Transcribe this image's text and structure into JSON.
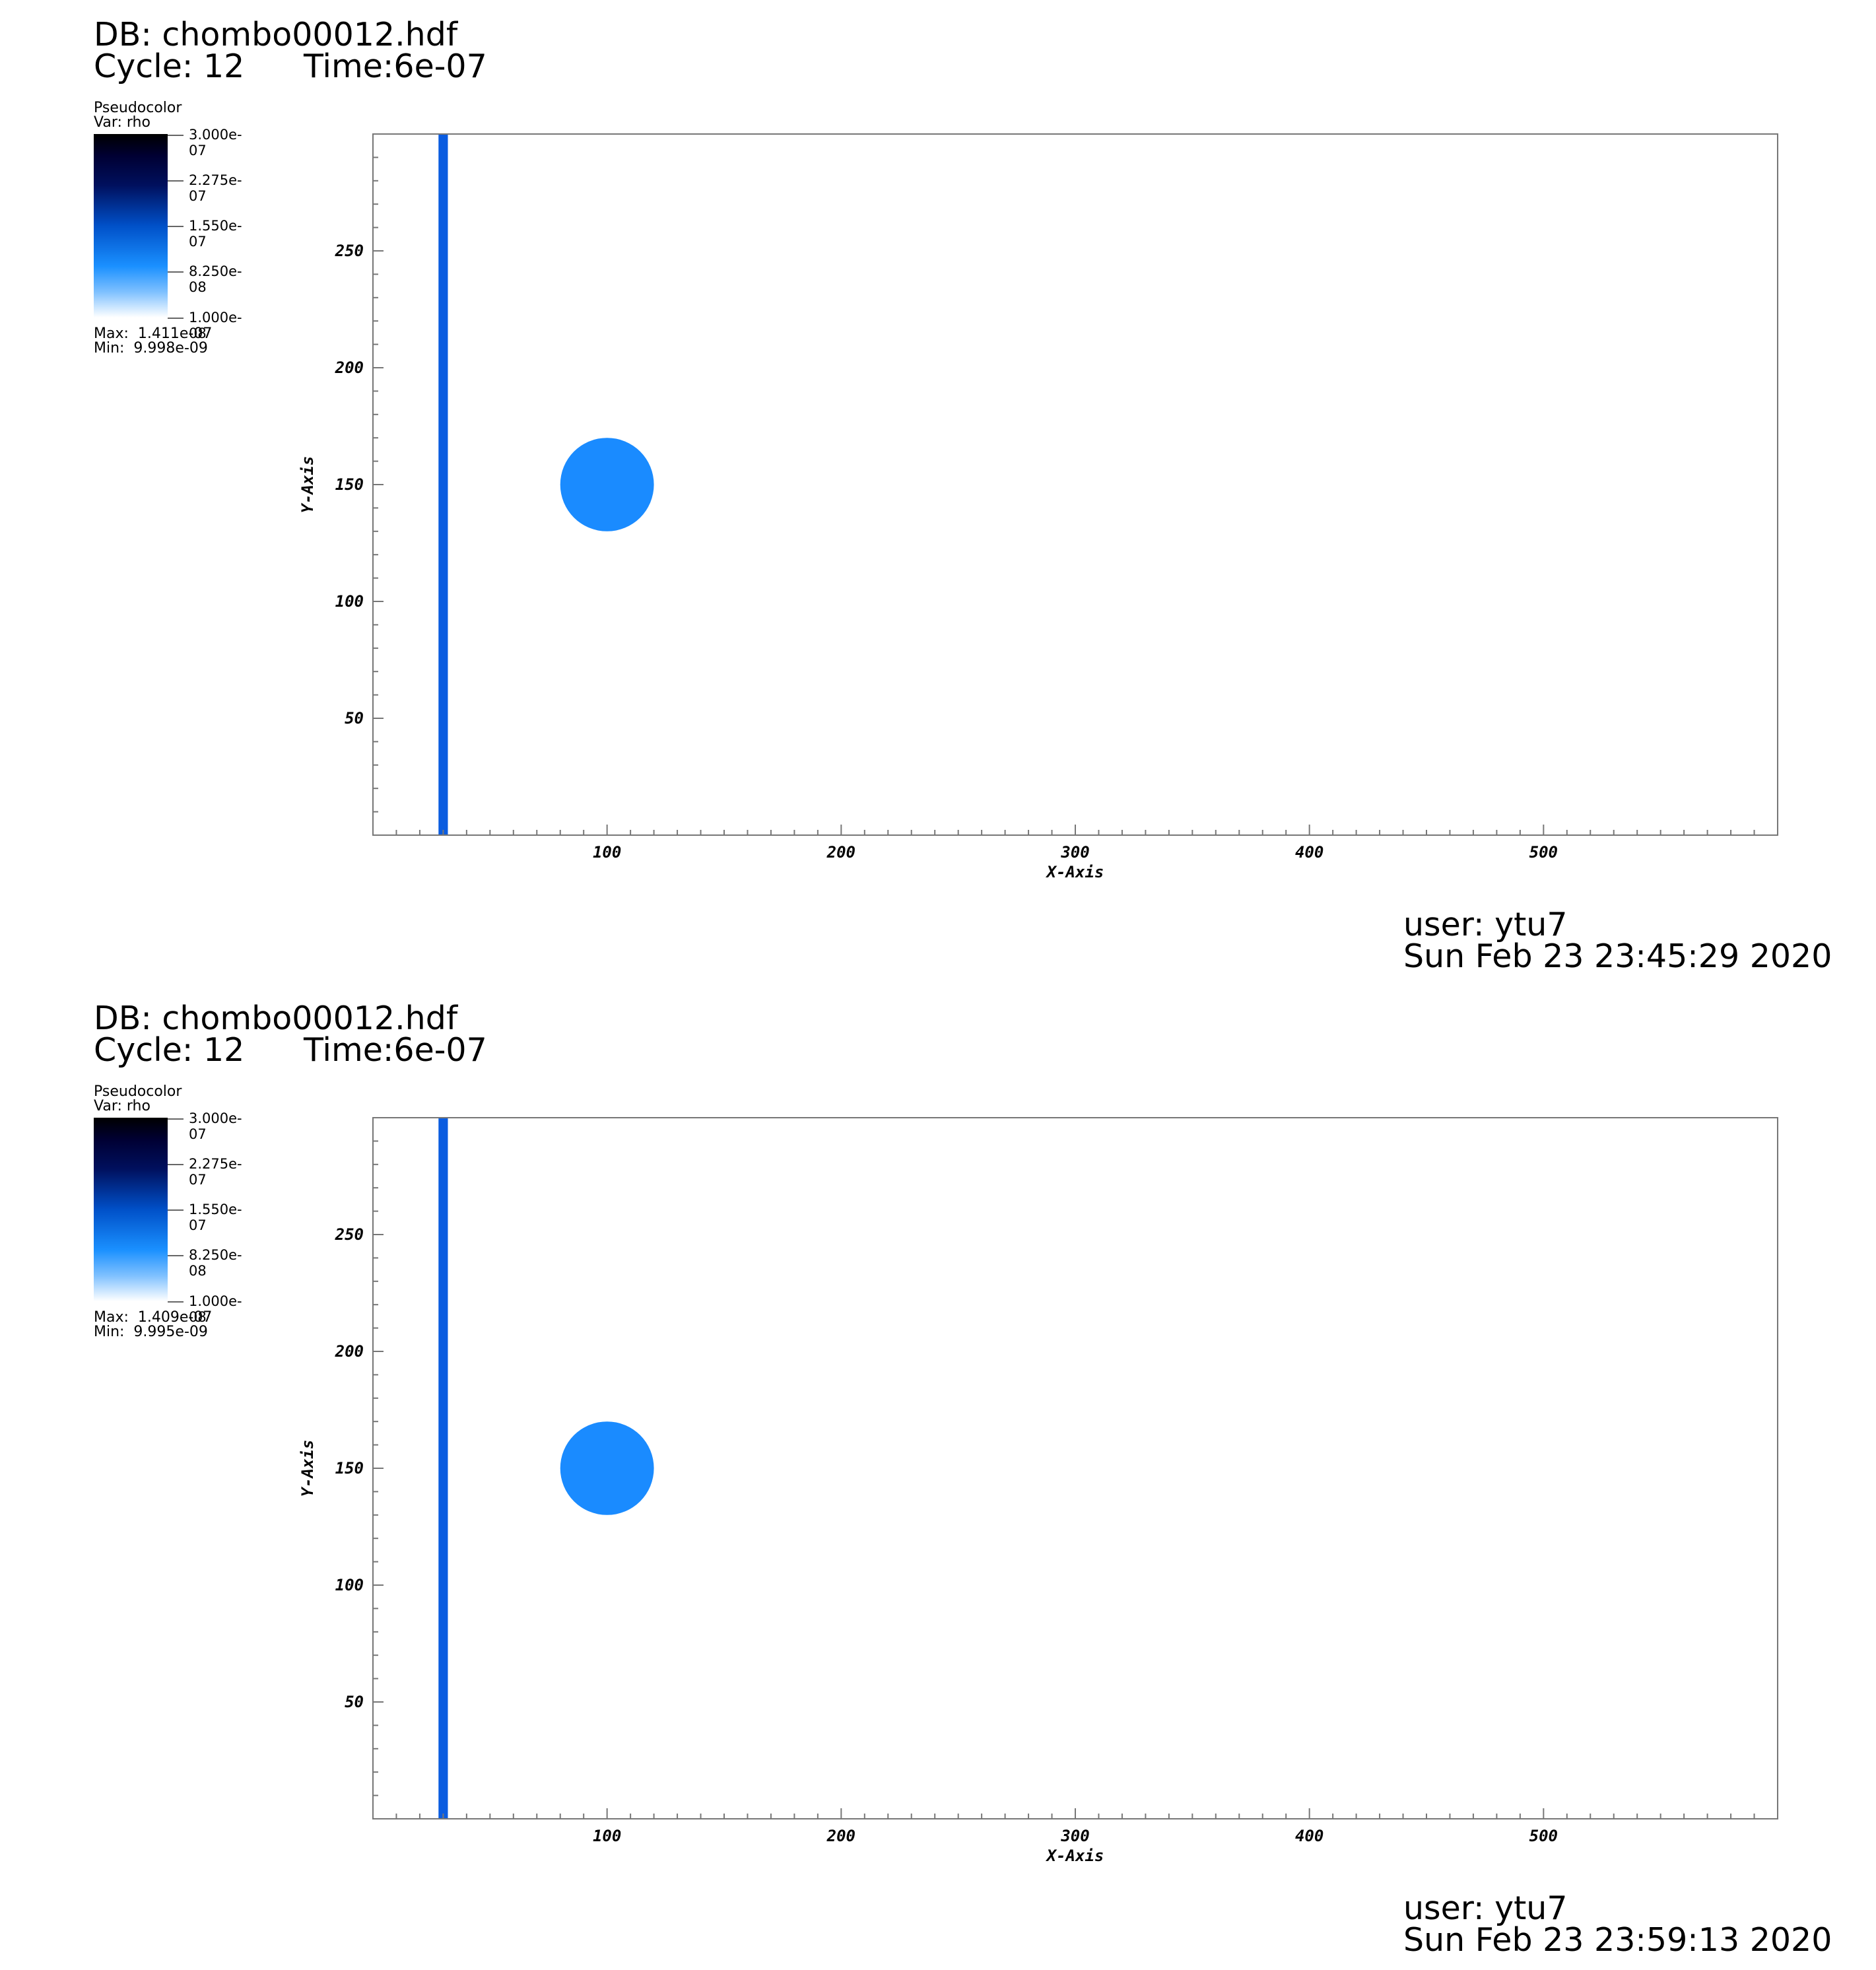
{
  "panels": [
    {
      "db": "DB: chombo00012.hdf",
      "cycle": "Cycle: 12",
      "time": "Time:6e-07",
      "legend": {
        "plot_type": "Pseudocolor",
        "var": "Var: rho",
        "ticks": [
          "3.000e-07",
          "2.275e-07",
          "1.550e-07",
          "8.250e-08",
          "1.000e-08"
        ],
        "max": "Max:  1.411e-07",
        "min": "Min:  9.998e-09"
      },
      "user": "user: ytu7",
      "date": "Sun Feb 23 23:45:29 2020"
    },
    {
      "db": "DB: chombo00012.hdf",
      "cycle": "Cycle: 12",
      "time": "Time:6e-07",
      "legend": {
        "plot_type": "Pseudocolor",
        "var": "Var: rho",
        "ticks": [
          "3.000e-07",
          "2.275e-07",
          "1.550e-07",
          "8.250e-08",
          "1.000e-08"
        ],
        "max": "Max:  1.409e-07",
        "min": "Min:  9.995e-09"
      },
      "user": "user: ytu7",
      "date": "Sun Feb 23 23:59:13 2020"
    }
  ],
  "chart_data": [
    {
      "type": "heatmap",
      "xlabel": "X-Axis",
      "ylabel": "Y-Axis",
      "xlim": [
        0,
        600
      ],
      "ylim": [
        0,
        300
      ],
      "x_ticks": [
        100,
        200,
        300,
        400,
        500
      ],
      "y_ticks": [
        50,
        100,
        150,
        200,
        250
      ],
      "colorbar_range": [
        1e-08,
        3e-07
      ],
      "features": [
        {
          "kind": "band",
          "x_center": 30,
          "width": 4,
          "color": "#0a5ce0"
        },
        {
          "kind": "disk",
          "x_center": 100,
          "y_center": 150,
          "radius": 20,
          "color": "#1a8bff"
        }
      ]
    },
    {
      "type": "heatmap",
      "xlabel": "X-Axis",
      "ylabel": "Y-Axis",
      "xlim": [
        0,
        600
      ],
      "ylim": [
        0,
        300
      ],
      "x_ticks": [
        100,
        200,
        300,
        400,
        500
      ],
      "y_ticks": [
        50,
        100,
        150,
        200,
        250
      ],
      "colorbar_range": [
        1e-08,
        3e-07
      ],
      "features": [
        {
          "kind": "band",
          "x_center": 30,
          "width": 4,
          "color": "#0a5ce0"
        },
        {
          "kind": "disk",
          "x_center": 100,
          "y_center": 150,
          "radius": 20,
          "color": "#1a8bff"
        }
      ]
    }
  ]
}
